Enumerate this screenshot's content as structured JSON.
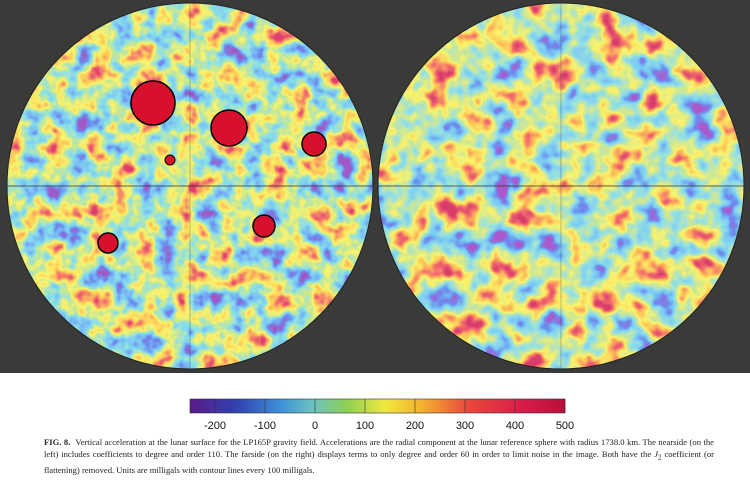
{
  "figure": {
    "colorbar": {
      "lim": [
        -250,
        500
      ],
      "ticks": [
        -200,
        -100,
        0,
        100,
        200,
        300,
        400,
        500
      ]
    },
    "caption": {
      "label": "FIG. 8.",
      "text_before": "Vertical acceleration at the lunar surface for the LP165P gravity field. Accelerations are the radial component at the lunar reference sphere with radius 1738.0 km. The nearside (on the left) includes coefficients to degree and order 110. The farside (on the right) displays terms to only degree and order 60 in order to limit noise in the image. Both have the",
      "symbol": "J",
      "subscript": "2",
      "text_after": "coefficient (or flattening) removed. Units are milligals with contour lines every 100 milligals."
    }
  }
}
